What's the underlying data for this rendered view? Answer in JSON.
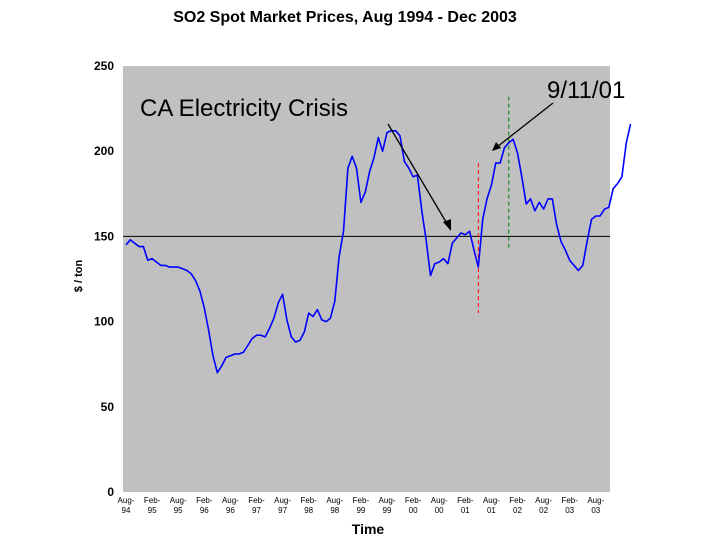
{
  "chart_data": {
    "type": "line",
    "title": "SO2 Spot Market Prices, Aug 1994 - Dec 2003",
    "xlabel": "Time",
    "ylabel": "$ / ton",
    "ylim": [
      0,
      250
    ],
    "yticks": [
      0,
      50,
      100,
      150,
      200,
      250
    ],
    "grid": false,
    "reference_line": {
      "y": 150
    },
    "x_tick_labels": [
      [
        "Aug-",
        "94"
      ],
      [
        "Feb-",
        "95"
      ],
      [
        "Aug-",
        "95"
      ],
      [
        "Feb-",
        "96"
      ],
      [
        "Aug-",
        "96"
      ],
      [
        "Feb-",
        "97"
      ],
      [
        "Aug-",
        "97"
      ],
      [
        "Feb-",
        "98"
      ],
      [
        "Aug-",
        "98"
      ],
      [
        "Feb-",
        "99"
      ],
      [
        "Aug-",
        "99"
      ],
      [
        "Feb-",
        "00"
      ],
      [
        "Aug-",
        "00"
      ],
      [
        "Feb-",
        "01"
      ],
      [
        "Aug-",
        "01"
      ],
      [
        "Feb-",
        "02"
      ],
      [
        "Aug-",
        "02"
      ],
      [
        "Feb-",
        "03"
      ],
      [
        "Aug-",
        "03"
      ]
    ],
    "series": [
      {
        "color": "#0000ff",
        "values": [
          145,
          148,
          146,
          144,
          144,
          136,
          137,
          135,
          133,
          133,
          132,
          132,
          132,
          131,
          130,
          128,
          124,
          118,
          108,
          95,
          80,
          70,
          74,
          79,
          80,
          81,
          81,
          82,
          86,
          90,
          92,
          92,
          91,
          96,
          102,
          111,
          116,
          101,
          91,
          88,
          89,
          94,
          105,
          103,
          107,
          101,
          100,
          102,
          112,
          138,
          153,
          190,
          197,
          190,
          170,
          176,
          188,
          196,
          208,
          200,
          211,
          212,
          212,
          209,
          194,
          190,
          185,
          186,
          165,
          148,
          127,
          134,
          135,
          137,
          134,
          146,
          149,
          152,
          151,
          153,
          142,
          132,
          160,
          172,
          180,
          193,
          193,
          202,
          205,
          207,
          199,
          185,
          169,
          172,
          165,
          170,
          166,
          172,
          172,
          157,
          147,
          142,
          136,
          133,
          130,
          133,
          147,
          160,
          162,
          162,
          166,
          167,
          178,
          181,
          185,
          205,
          216
        ]
      }
    ],
    "events": [
      {
        "label": "CA Electricity Crisis",
        "x_index": 81,
        "line_color": "#ff0000",
        "line_from": 105,
        "line_to": 193
      },
      {
        "label": "9/11/01",
        "x_index": 88,
        "line_color": "#008000",
        "line_from": 143,
        "line_to": 232
      }
    ]
  }
}
